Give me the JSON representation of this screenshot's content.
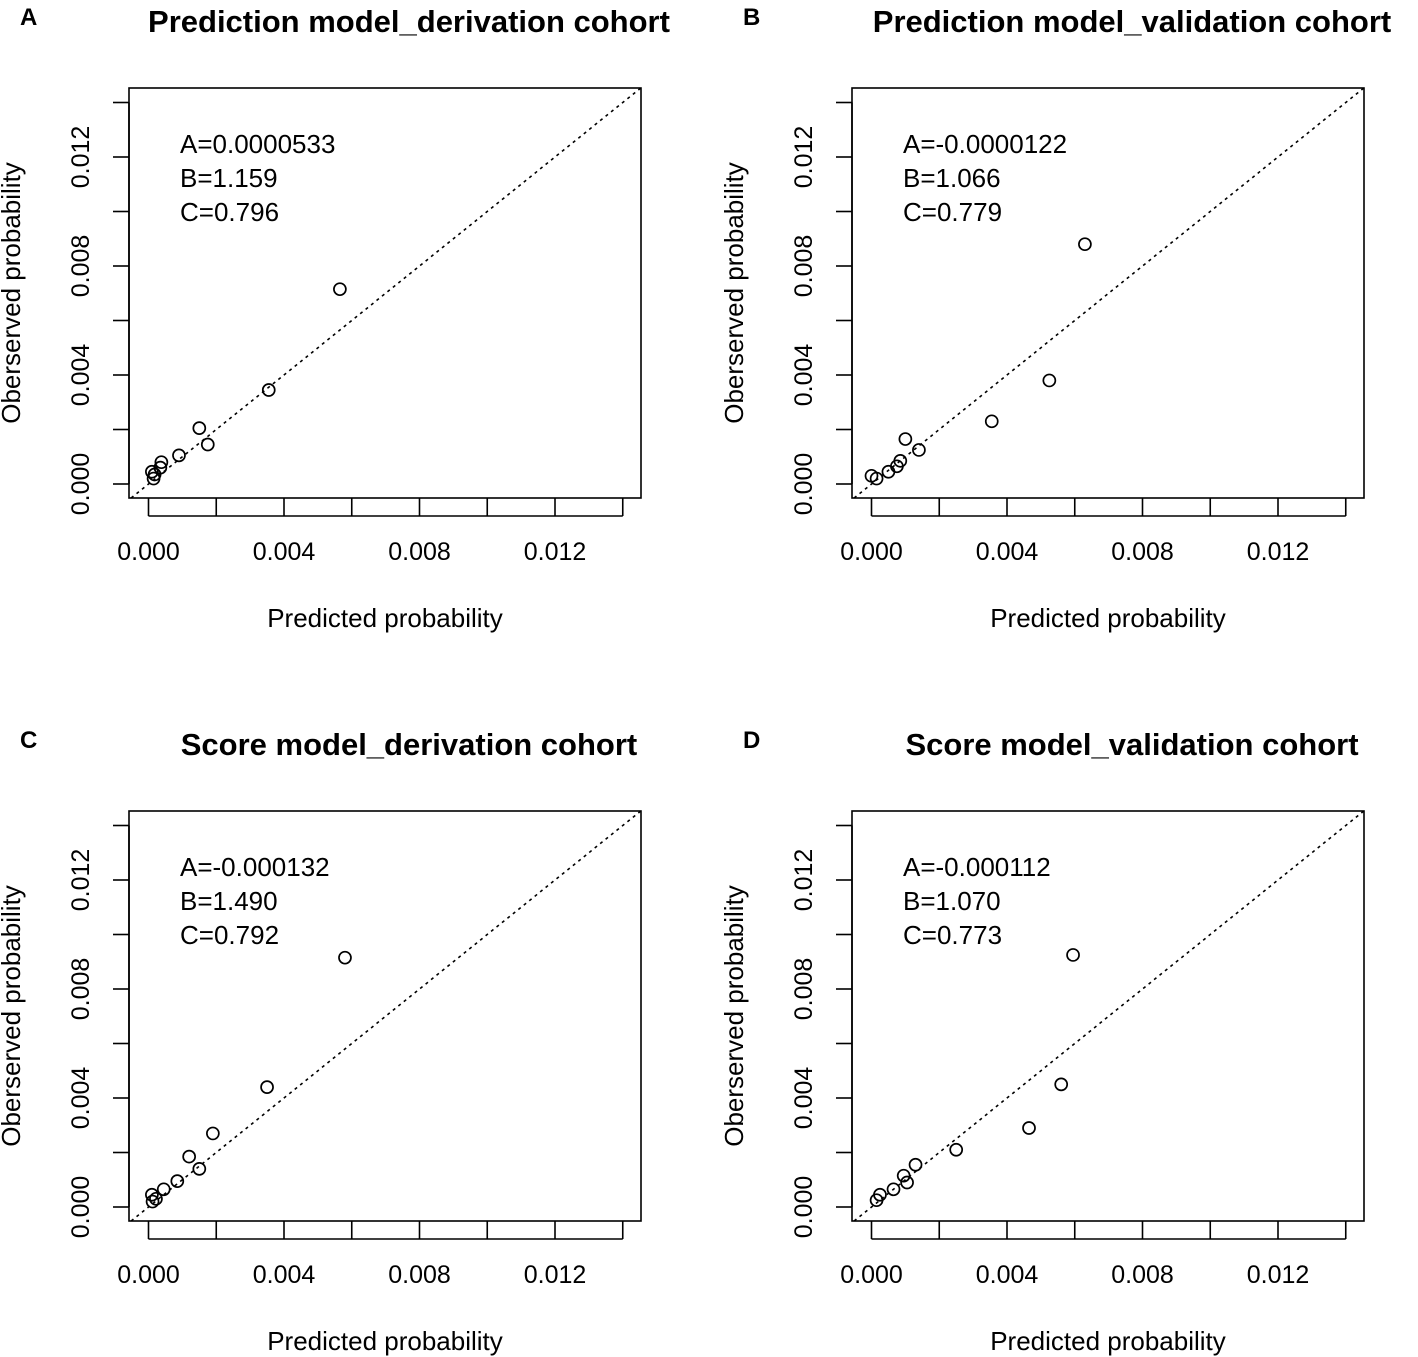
{
  "chart_data": [
    {
      "type": "scatter",
      "panel_label": "A",
      "title": "Prediction model_derivation cohort",
      "xlabel": "Predicted probability",
      "ylabel": "Oberserved probability",
      "xlim": [
        0,
        0.014
      ],
      "ylim": [
        0,
        0.014
      ],
      "xticks": [
        "0.000",
        "0.004",
        "0.008",
        "0.012"
      ],
      "yticks": [
        "0.000",
        "0.004",
        "0.008",
        "0.012"
      ],
      "reference_line": "y = x (dotted)",
      "annotations": [
        "A=0.0000533",
        "B=1.159",
        "C=0.796"
      ],
      "points": [
        {
          "x": 0.0001,
          "y": 0.00045
        },
        {
          "x": 0.00015,
          "y": 0.0002
        },
        {
          "x": 0.00018,
          "y": 0.00035
        },
        {
          "x": 0.00035,
          "y": 0.0006
        },
        {
          "x": 0.00038,
          "y": 0.0008
        },
        {
          "x": 0.0009,
          "y": 0.00105
        },
        {
          "x": 0.0015,
          "y": 0.00205
        },
        {
          "x": 0.00175,
          "y": 0.00145
        },
        {
          "x": 0.00355,
          "y": 0.00345
        },
        {
          "x": 0.00565,
          "y": 0.00715
        }
      ]
    },
    {
      "type": "scatter",
      "panel_label": "B",
      "title": "Prediction model_validation cohort",
      "xlabel": "Predicted probability",
      "ylabel": "Oberserved probability",
      "xlim": [
        0,
        0.014
      ],
      "ylim": [
        0,
        0.014
      ],
      "xticks": [
        "0.000",
        "0.004",
        "0.008",
        "0.012"
      ],
      "yticks": [
        "0.000",
        "0.004",
        "0.008",
        "0.012"
      ],
      "reference_line": "y = x (dotted)",
      "annotations": [
        "A=-0.0000122",
        "B=1.066",
        "C=0.779"
      ],
      "points": [
        {
          "x": 0.0,
          "y": 0.0003
        },
        {
          "x": 0.00015,
          "y": 0.0002
        },
        {
          "x": 0.0005,
          "y": 0.00045
        },
        {
          "x": 0.00075,
          "y": 0.00065
        },
        {
          "x": 0.00085,
          "y": 0.00085
        },
        {
          "x": 0.001,
          "y": 0.00165
        },
        {
          "x": 0.0014,
          "y": 0.00125
        },
        {
          "x": 0.00355,
          "y": 0.0023
        },
        {
          "x": 0.00525,
          "y": 0.0038
        },
        {
          "x": 0.0063,
          "y": 0.0088
        }
      ]
    },
    {
      "type": "scatter",
      "panel_label": "C",
      "title": "Score model_derivation cohort",
      "xlabel": "Predicted probability",
      "ylabel": "Oberserved probability",
      "xlim": [
        0,
        0.014
      ],
      "ylim": [
        0,
        0.014
      ],
      "xticks": [
        "0.000",
        "0.004",
        "0.008",
        "0.012"
      ],
      "yticks": [
        "0.000",
        "0.004",
        "0.008",
        "0.012"
      ],
      "reference_line": "y = x (dotted)",
      "annotations": [
        "A=-0.000132",
        "B=1.490",
        "C=0.792"
      ],
      "points": [
        {
          "x": 0.0001,
          "y": 0.00045
        },
        {
          "x": 0.00012,
          "y": 0.0002
        },
        {
          "x": 0.00022,
          "y": 0.0003
        },
        {
          "x": 0.00045,
          "y": 0.00065
        },
        {
          "x": 0.00085,
          "y": 0.00095
        },
        {
          "x": 0.0012,
          "y": 0.00185
        },
        {
          "x": 0.0015,
          "y": 0.0014
        },
        {
          "x": 0.0019,
          "y": 0.0027
        },
        {
          "x": 0.0035,
          "y": 0.0044
        },
        {
          "x": 0.0058,
          "y": 0.00915
        }
      ]
    },
    {
      "type": "scatter",
      "panel_label": "D",
      "title": "Score model_validation cohort",
      "xlabel": "Predicted probability",
      "ylabel": "Oberserved probability",
      "xlim": [
        0,
        0.014
      ],
      "ylim": [
        0,
        0.014
      ],
      "xticks": [
        "0.000",
        "0.004",
        "0.008",
        "0.012"
      ],
      "yticks": [
        "0.000",
        "0.004",
        "0.008",
        "0.012"
      ],
      "reference_line": "y = x (dotted)",
      "annotations": [
        "A=-0.000112",
        "B=1.070",
        "C=0.773"
      ],
      "points": [
        {
          "x": 0.00015,
          "y": 0.00025
        },
        {
          "x": 0.00025,
          "y": 0.00045
        },
        {
          "x": 0.00065,
          "y": 0.00065
        },
        {
          "x": 0.00095,
          "y": 0.00115
        },
        {
          "x": 0.00105,
          "y": 0.0009
        },
        {
          "x": 0.0013,
          "y": 0.00155
        },
        {
          "x": 0.0025,
          "y": 0.0021
        },
        {
          "x": 0.00465,
          "y": 0.0029
        },
        {
          "x": 0.0056,
          "y": 0.0045
        },
        {
          "x": 0.00595,
          "y": 0.00925
        }
      ]
    }
  ]
}
